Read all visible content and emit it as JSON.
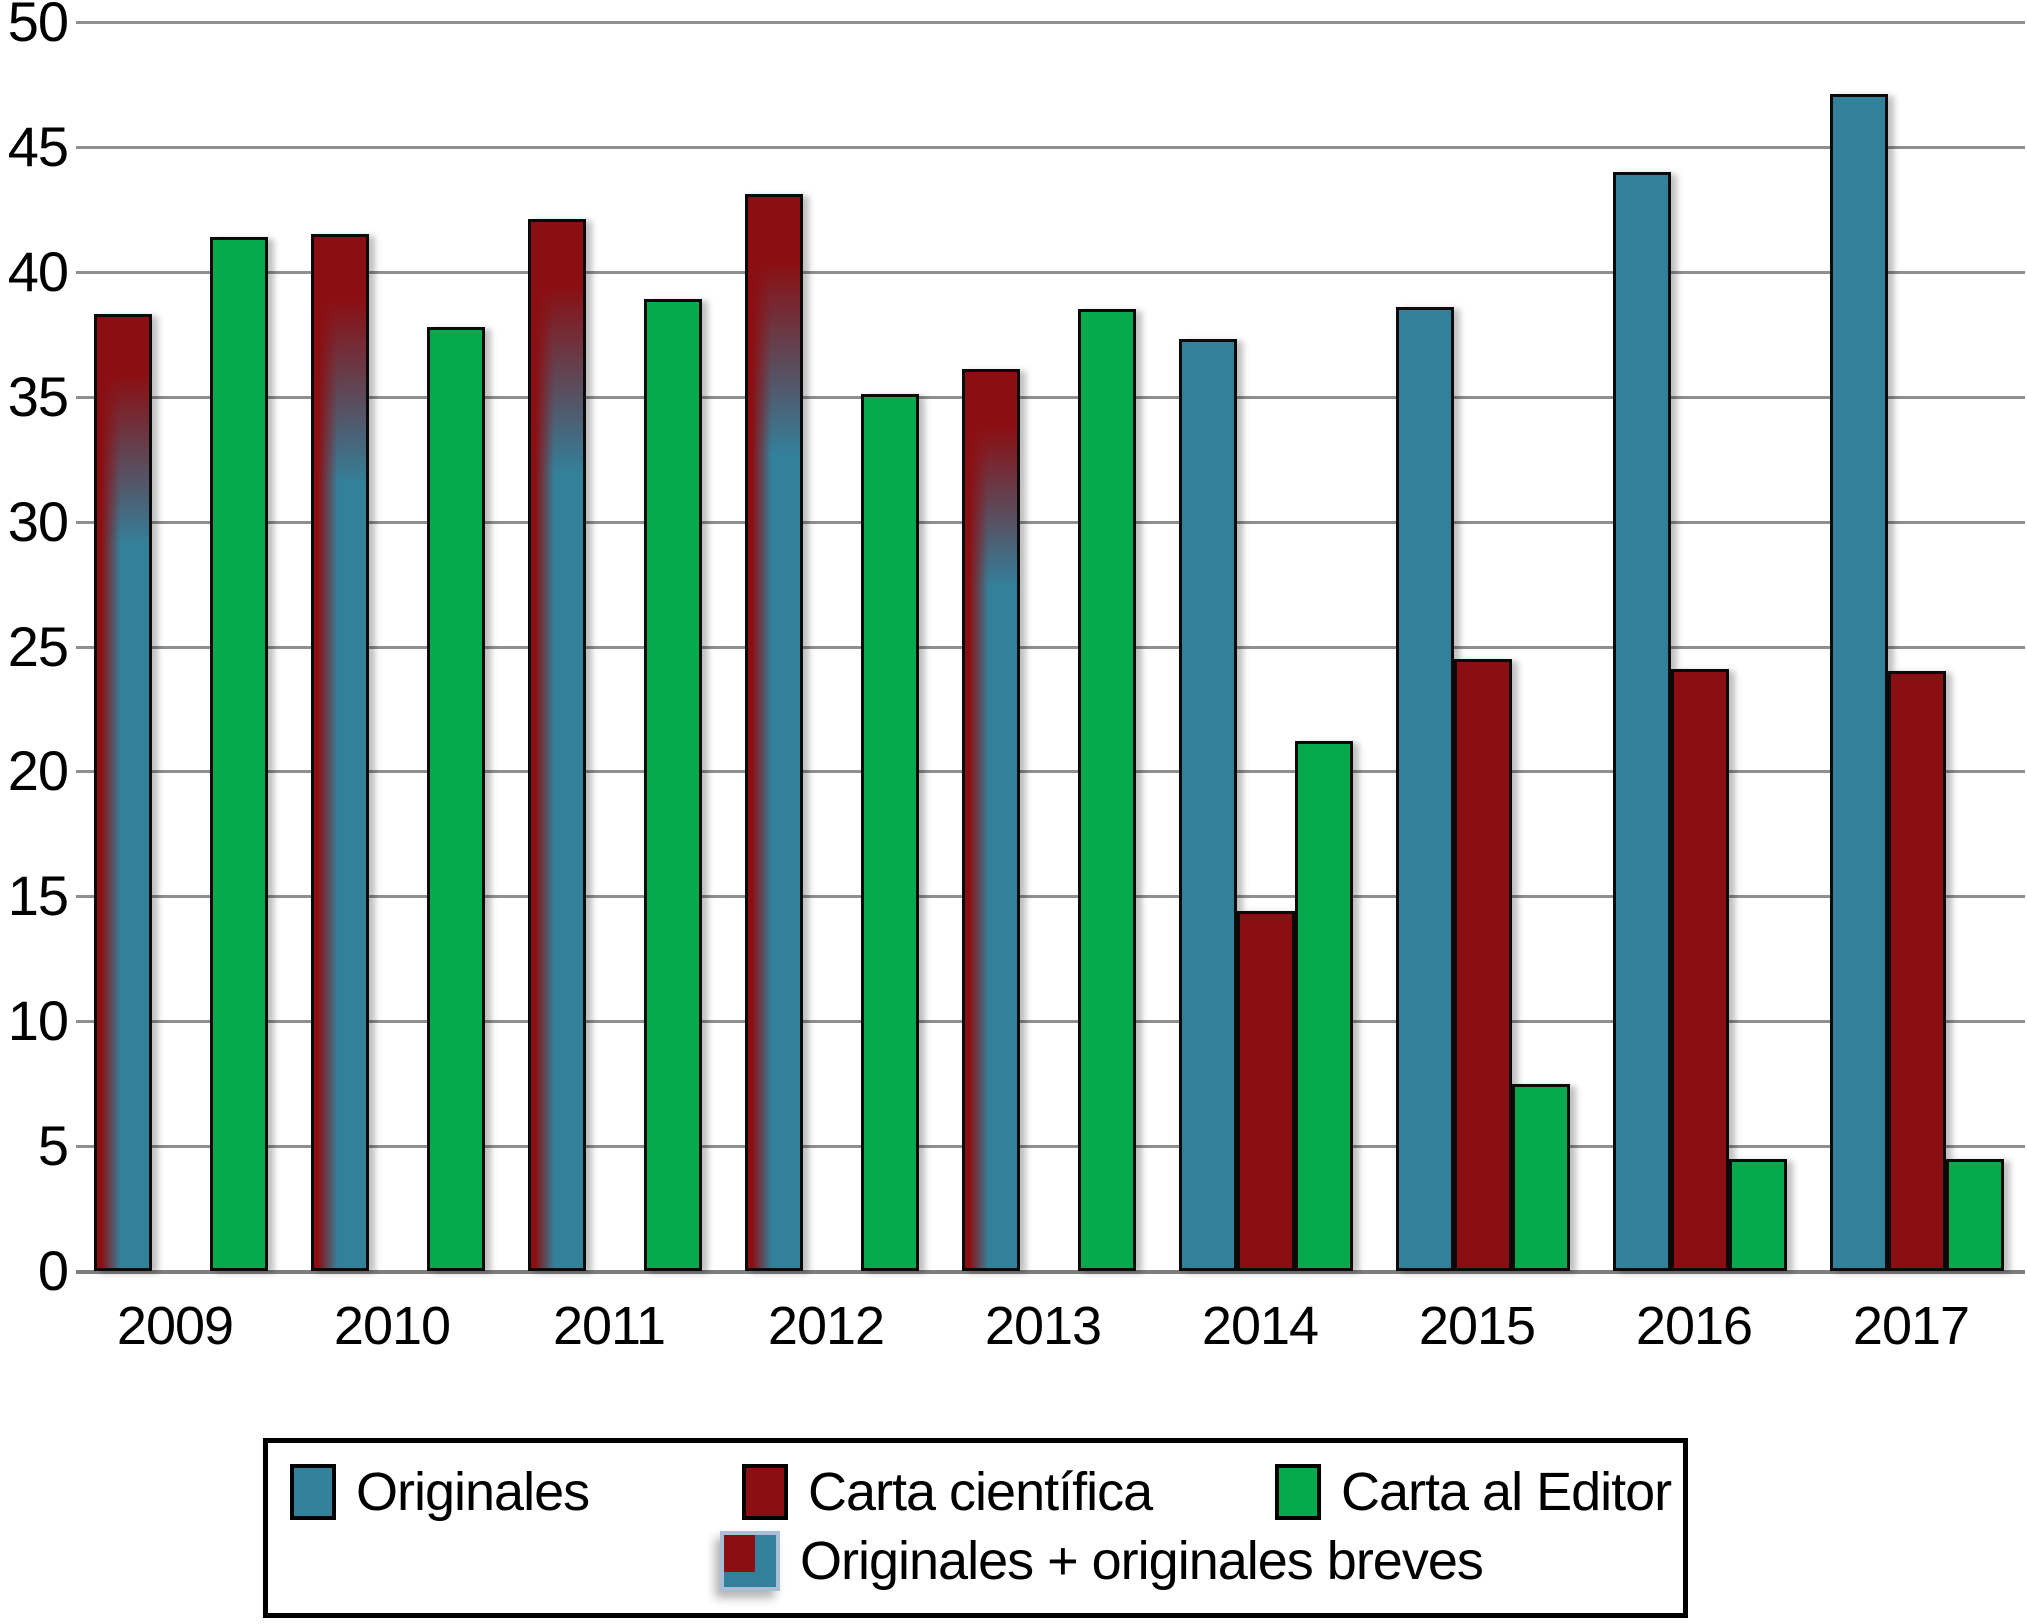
{
  "chart_data": {
    "type": "bar",
    "title": "",
    "xlabel": "",
    "ylabel": "",
    "categories": [
      "2009",
      "2010",
      "2011",
      "2012",
      "2013",
      "2014",
      "2015",
      "2016",
      "2017"
    ],
    "ylim": [
      0,
      50
    ],
    "yticks": [
      0,
      5,
      10,
      15,
      20,
      25,
      30,
      35,
      40,
      45,
      50
    ],
    "grid": "horizontal",
    "legend_position": "bottom",
    "series": [
      {
        "name": "Originales",
        "color": "#33809a",
        "values": [
          null,
          null,
          null,
          null,
          null,
          37.3,
          38.6,
          44.0,
          47.1
        ]
      },
      {
        "name": "Carta científica",
        "color": "#8b0e12",
        "values": [
          null,
          null,
          null,
          null,
          null,
          14.4,
          24.5,
          24.1,
          24.0
        ]
      },
      {
        "name": "Carta al Editor",
        "color": "#06a94c",
        "values": [
          41.4,
          37.8,
          38.9,
          35.1,
          38.5,
          21.2,
          7.5,
          4.5,
          4.5
        ]
      },
      {
        "name": "Originales + originales breves",
        "color_top": "#8b0e12",
        "color_bottom": "#33809a",
        "values": [
          38.3,
          41.5,
          42.1,
          43.1,
          36.1,
          null,
          null,
          null,
          null
        ]
      }
    ]
  },
  "colors": {
    "teal": "#33809a",
    "dark_red": "#8b0e12",
    "green": "#06a94c",
    "gridline": "#8f8f8f"
  },
  "legend": {
    "items": [
      {
        "label": "Originales"
      },
      {
        "label": "Carta científica"
      },
      {
        "label": "Carta al Editor"
      },
      {
        "label": "Originales + originales breves"
      }
    ]
  }
}
